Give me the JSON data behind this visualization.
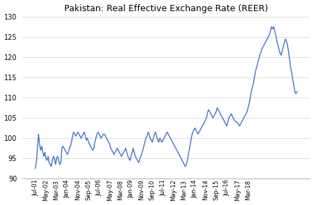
{
  "title": "Pakistan: Real Effective Exchange Rate (REER)",
  "ylim": [
    90,
    130
  ],
  "yticks": [
    90,
    95,
    100,
    105,
    110,
    115,
    120,
    125,
    130
  ],
  "line_color": "#4472C4",
  "line_width": 1.0,
  "x_labels": [
    "Jul-01",
    "May-02",
    "Mar-03",
    "Jan-04",
    "Nov-04",
    "Sep-05",
    "Jul-06",
    "May-07",
    "Mar-08",
    "Jan-09",
    "Nov-09",
    "Sep-10",
    "Jul-11",
    "May-12",
    "Mar-13",
    "Jan-14",
    "Nov-14",
    "Sep-15",
    "Jul-16",
    "May-17",
    "Mar-18"
  ],
  "values": [
    92.5,
    94.0,
    97.5,
    101.0,
    98.5,
    97.0,
    98.0,
    96.5,
    95.5,
    96.5,
    95.0,
    94.5,
    95.5,
    94.0,
    93.5,
    93.0,
    94.5,
    95.5,
    95.0,
    93.5,
    95.0,
    95.5,
    94.5,
    93.5,
    94.0,
    97.5,
    98.0,
    97.5,
    97.0,
    96.5,
    96.0,
    96.5,
    97.5,
    98.0,
    99.0,
    100.5,
    101.5,
    101.0,
    100.5,
    101.0,
    101.5,
    101.0,
    100.5,
    100.0,
    100.5,
    101.0,
    101.5,
    100.5,
    99.5,
    100.0,
    99.0,
    98.5,
    98.0,
    97.5,
    97.0,
    97.5,
    99.0,
    100.0,
    101.0,
    101.5,
    101.0,
    100.5,
    100.0,
    100.5,
    101.0,
    101.0,
    100.5,
    100.0,
    99.5,
    99.0,
    98.5,
    97.5,
    97.0,
    96.5,
    96.0,
    96.5,
    97.0,
    97.5,
    97.0,
    96.5,
    96.0,
    95.5,
    96.0,
    96.5,
    97.0,
    97.5,
    96.5,
    95.5,
    95.0,
    94.5,
    95.5,
    96.5,
    97.5,
    96.5,
    95.5,
    95.0,
    94.5,
    94.0,
    94.5,
    95.5,
    96.0,
    97.0,
    98.0,
    99.0,
    100.0,
    100.5,
    101.5,
    101.0,
    100.0,
    99.5,
    99.0,
    100.0,
    101.0,
    101.5,
    100.5,
    99.5,
    99.0,
    100.0,
    99.5,
    99.0,
    99.5,
    100.0,
    100.5,
    101.0,
    101.5,
    101.0,
    100.5,
    100.0,
    99.5,
    99.0,
    98.5,
    98.0,
    97.5,
    97.0,
    96.5,
    96.0,
    95.5,
    95.0,
    94.5,
    94.0,
    93.5,
    93.0,
    93.5,
    94.5,
    96.0,
    97.5,
    99.0,
    100.5,
    101.5,
    102.0,
    102.5,
    102.0,
    101.5,
    101.0,
    101.5,
    102.0,
    102.5,
    103.0,
    103.5,
    104.0,
    104.5,
    105.0,
    106.5,
    107.0,
    106.5,
    106.0,
    105.5,
    105.0,
    105.5,
    106.0,
    106.5,
    107.5,
    107.0,
    106.5,
    106.0,
    105.5,
    105.0,
    104.5,
    104.0,
    103.5,
    103.0,
    104.0,
    105.0,
    105.5,
    106.0,
    105.5,
    105.0,
    104.5,
    104.2,
    104.0,
    103.8,
    103.5,
    103.0,
    103.5,
    104.0,
    104.5,
    105.0,
    105.5,
    106.0,
    106.5,
    107.5,
    108.5,
    110.0,
    111.5,
    112.5,
    113.5,
    115.0,
    116.5,
    117.5,
    118.5,
    119.5,
    120.5,
    121.0,
    122.0,
    122.5,
    123.0,
    123.5,
    124.0,
    124.5,
    125.0,
    125.5,
    126.5,
    127.5,
    127.0,
    127.5,
    126.5,
    125.5,
    124.0,
    123.0,
    122.0,
    121.0,
    120.5,
    121.5,
    122.5,
    123.5,
    124.5,
    124.0,
    123.0,
    121.5,
    119.5,
    117.5,
    116.0,
    114.5,
    113.0,
    111.5,
    111.0,
    111.5
  ]
}
